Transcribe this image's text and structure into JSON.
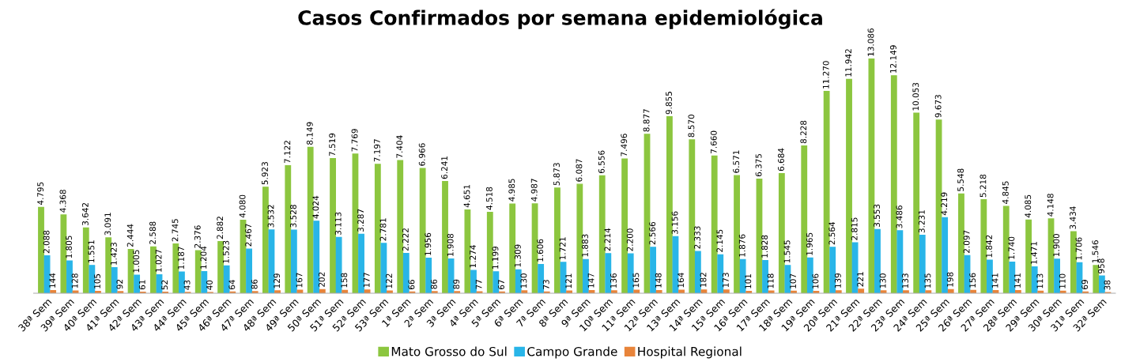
{
  "chart_data": {
    "type": "bar",
    "title": "Casos Confirmados por semana epidemiológica",
    "categories": [
      "38ª Sem",
      "39ª Sem",
      "40ª Sem",
      "41ª Sem",
      "42ª Sem",
      "43ª Sem",
      "44ª Sem",
      "45ª Sem",
      "46ª Sem",
      "47ª Sem",
      "48ª Sem",
      "49ª Sem",
      "50ª Sem",
      "51ª Sem",
      "52ª Sem",
      "53ª Sem",
      "1ª Sem",
      "2ª Sem",
      "3ª Sem",
      "4ª Sem",
      "5ª Sem",
      "6ª Sem",
      "7ª Sem",
      "8ª Sem",
      "9ª Sem",
      "10ª Sem",
      "11ª Sem",
      "12ª Sem",
      "13ª Sem",
      "14ª Sem",
      "15ª Sem",
      "16ª Sem",
      "17ª Sem",
      "18ª Sem",
      "19ª Sem",
      "20ª Sem",
      "21ª Sem",
      "22ª Sem",
      "23ª Sem",
      "24ª Sem",
      "25ª Sem",
      "26ª Sem",
      "27ª Sem",
      "28ª Sem",
      "29ª Sem",
      "30ª Sem",
      "31ª Sem",
      "32ª Sem"
    ],
    "series": [
      {
        "name": "Mato Grosso do Sul",
        "color": "#8cc63f",
        "values": [
          4795,
          4368,
          3642,
          3091,
          2444,
          2588,
          2745,
          2376,
          2882,
          4080,
          5923,
          7122,
          8149,
          7519,
          7769,
          7197,
          7404,
          6966,
          6241,
          4651,
          4518,
          4985,
          4987,
          5873,
          6087,
          6556,
          7496,
          8877,
          9855,
          8570,
          7660,
          6571,
          6375,
          6684,
          8228,
          11270,
          11942,
          13086,
          12149,
          10053,
          9673,
          5548,
          5218,
          4845,
          4085,
          4148,
          3434,
          1546
        ],
        "value_labels": [
          "4.795",
          "4.368",
          "3.642",
          "3.091",
          "2.444",
          "2.588",
          "2.745",
          "2.376",
          "2.882",
          "4.080",
          "5.923",
          "7.122",
          "8.149",
          "7.519",
          "7.769",
          "7.197",
          "7.404",
          "6.966",
          "6.241",
          "4.651",
          "4.518",
          "4.985",
          "4.987",
          "5.873",
          "6.087",
          "6.556",
          "7.496",
          "8.877",
          "9.855",
          "8.570",
          "7.660",
          "6.571",
          "6.375",
          "6.684",
          "8.228",
          "11.270",
          "11.942",
          "13.086",
          "12.149",
          "10.053",
          "9.673",
          "5.548",
          "5.218",
          "4.845",
          "4.085",
          "4.148",
          "3.434",
          "1.546"
        ]
      },
      {
        "name": "Campo Grande",
        "color": "#29b5e8",
        "values": [
          2088,
          1805,
          1551,
          1423,
          1005,
          1027,
          1187,
          1204,
          1523,
          2467,
          3532,
          3528,
          4024,
          3113,
          3287,
          2781,
          2222,
          1956,
          1908,
          1274,
          1199,
          1309,
          1606,
          1721,
          1883,
          2214,
          2200,
          2566,
          3156,
          2333,
          2145,
          1876,
          1828,
          1545,
          1965,
          2564,
          2815,
          3553,
          3486,
          3231,
          4219,
          2097,
          1842,
          1740,
          1471,
          1900,
          1706,
          958
        ],
        "value_labels": [
          "2.088",
          "1.805",
          "1.551",
          "1.423",
          "1.005",
          "1.027",
          "1.187",
          "1.204",
          "1.523",
          "2.467",
          "3.532",
          "3.528",
          "4.024",
          "3.113",
          "3.287",
          "2.781",
          "2.222",
          "1.956",
          "1.908",
          "1.274",
          "1.199",
          "1.309",
          "1.606",
          "1.721",
          "1.883",
          "2.214",
          "2.200",
          "2.566",
          "3.156",
          "2.333",
          "2.145",
          "1.876",
          "1.828",
          "1.545",
          "1.965",
          "2.564",
          "2.815",
          "3.553",
          "3.486",
          "3.231",
          "4.219",
          "2.097",
          "1.842",
          "1.740",
          "1.471",
          "1.900",
          "1.706",
          "958"
        ]
      },
      {
        "name": "Hospital Regional",
        "color": "#e8843a",
        "values": [
          144,
          128,
          105,
          92,
          61,
          52,
          43,
          40,
          64,
          86,
          129,
          167,
          202,
          158,
          177,
          122,
          66,
          86,
          89,
          77,
          67,
          130,
          73,
          121,
          147,
          136,
          165,
          148,
          164,
          182,
          173,
          101,
          118,
          107,
          106,
          139,
          221,
          130,
          133,
          135,
          198,
          156,
          141,
          141,
          113,
          110,
          69,
          38
        ],
        "value_labels": [
          "144",
          "128",
          "105",
          "92",
          "61",
          "52",
          "43",
          "40",
          "64",
          "86",
          "129",
          "167",
          "202",
          "158",
          "177",
          "122",
          "66",
          "86",
          "89",
          "77",
          "67",
          "130",
          "73",
          "121",
          "147",
          "136",
          "165",
          "148",
          "164",
          "182",
          "173",
          "101",
          "118",
          "107",
          "106",
          "139",
          "221",
          "130",
          "133",
          "135",
          "198",
          "156",
          "141",
          "141",
          "113",
          "110",
          "69",
          "38"
        ]
      }
    ],
    "legend": "bottom",
    "grid": false
  }
}
